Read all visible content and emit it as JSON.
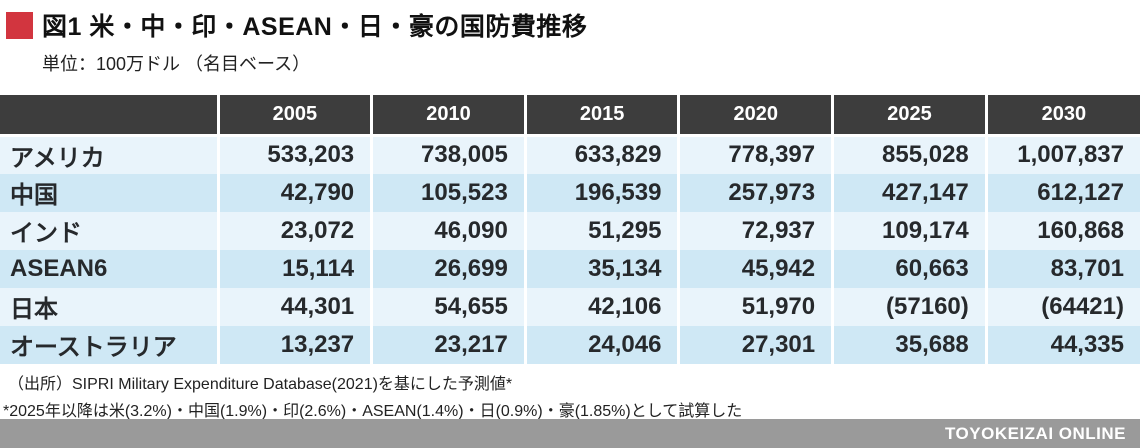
{
  "header": {
    "title": "図1 米・中・印・ASEAN・日・豪の国防費推移",
    "subtitle": "単位：100万ドル （名目ベース）"
  },
  "colors": {
    "accent_red": "#d2353f",
    "table_header_bg": "#3d3d3d",
    "row_light_blue": "#e9f4fb",
    "row_dark_blue": "#cfe8f5",
    "footer_bar_gray": "#9a9a9a"
  },
  "chart_data": {
    "type": "table",
    "title": "図1 米・中・印・ASEAN・日・豪の国防費推移",
    "unit": "100万ドル（名目ベース）",
    "columns": [
      "2005",
      "2010",
      "2015",
      "2020",
      "2025",
      "2030"
    ],
    "rows": [
      {
        "label": "アメリカ",
        "values": [
          "533,203",
          "738,005",
          "633,829",
          "778,397",
          "855,028",
          "1,007,837"
        ]
      },
      {
        "label": "中国",
        "values": [
          "42,790",
          "105,523",
          "196,539",
          "257,973",
          "427,147",
          "612,127"
        ]
      },
      {
        "label": "インド",
        "values": [
          "23,072",
          "46,090",
          "51,295",
          "72,937",
          "109,174",
          "160,868"
        ]
      },
      {
        "label": "ASEAN6",
        "values": [
          "15,114",
          "26,699",
          "35,134",
          "45,942",
          "60,663",
          "83,701"
        ]
      },
      {
        "label": "日本",
        "values": [
          "44,301",
          "54,655",
          "42,106",
          "51,970",
          "(57160)",
          "(64421)"
        ]
      },
      {
        "label": "オーストラリア",
        "values": [
          "13,237",
          "23,217",
          "24,046",
          "27,301",
          "35,688",
          "44,335"
        ]
      }
    ]
  },
  "footer": {
    "source_line": "（出所）SIPRI Military Expenditure Database(2021)を基にした予測値*",
    "note_line": "*2025年以降は米(3.2%)・中国(1.9%)・印(2.6%)・ASEAN(1.4%)・日(0.9%)・豪(1.85%)として試算した"
  },
  "footer_bar": {
    "brand": "TOYOKEIZAI ONLINE"
  }
}
